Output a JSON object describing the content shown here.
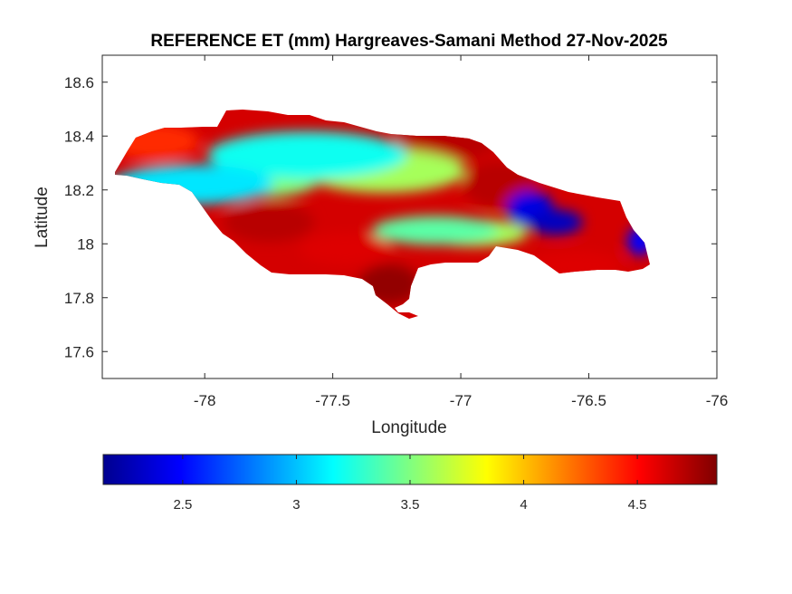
{
  "figure": {
    "title": "REFERENCE ET (mm) Hargreaves-Samani Method  27-Nov-2025",
    "xlabel": "Longitude",
    "ylabel": "Latitude"
  },
  "chart_data": {
    "type": "heatmap",
    "title": "REFERENCE ET (mm) Hargreaves-Samani Method  27-Nov-2025",
    "xlabel": "Longitude",
    "ylabel": "Latitude",
    "xlim": [
      -78.4,
      -76
    ],
    "ylim": [
      17.5,
      18.7
    ],
    "x_ticks": [
      -78,
      -77.5,
      -77,
      -76.5,
      -76
    ],
    "x_tick_labels": [
      "-78",
      "-77.5",
      "-77",
      "-76.5",
      "-76"
    ],
    "y_ticks": [
      17.6,
      17.8,
      18,
      18.2,
      18.4,
      18.6
    ],
    "y_tick_labels": [
      "17.6",
      "17.8",
      "18",
      "18.2",
      "18.4",
      "18.6"
    ],
    "colormap": "jet",
    "colorbar": {
      "location": "bottom",
      "range": [
        2.15,
        4.85
      ],
      "ticks": [
        2.5,
        3,
        3.5,
        4,
        4.5
      ],
      "tick_labels": [
        "2.5",
        "3",
        "3.5",
        "4",
        "4.5"
      ]
    },
    "grid": false,
    "region": "Jamaica",
    "features": [
      {
        "lon": -78.05,
        "lat": 18.22,
        "value": 3.1
      },
      {
        "lon": -77.6,
        "lat": 18.33,
        "value": 3.2
      },
      {
        "lon": -77.3,
        "lat": 18.27,
        "value": 3.6
      },
      {
        "lon": -77.75,
        "lat": 18.25,
        "value": 3.5
      },
      {
        "lon": -77.1,
        "lat": 18.05,
        "value": 3.4
      },
      {
        "lon": -76.95,
        "lat": 18.04,
        "value": 3.6
      },
      {
        "lon": -76.73,
        "lat": 18.13,
        "value": 2.4
      },
      {
        "lon": -76.63,
        "lat": 18.08,
        "value": 2.3
      },
      {
        "lon": -76.3,
        "lat": 18.01,
        "value": 2.5
      },
      {
        "lon": -77.28,
        "lat": 17.85,
        "value": 4.8
      },
      {
        "lon": -77.05,
        "lat": 18.4,
        "value": 4.7
      },
      {
        "lon": -76.85,
        "lat": 18.22,
        "value": 4.7
      },
      {
        "lon": -77.75,
        "lat": 18.08,
        "value": 4.7
      },
      {
        "lon": -77.45,
        "lat": 17.98,
        "value": 4.6
      },
      {
        "lon": -78.2,
        "lat": 18.38,
        "value": 4.4
      },
      {
        "lon": -76.55,
        "lat": 17.92,
        "value": 4.6
      }
    ]
  }
}
